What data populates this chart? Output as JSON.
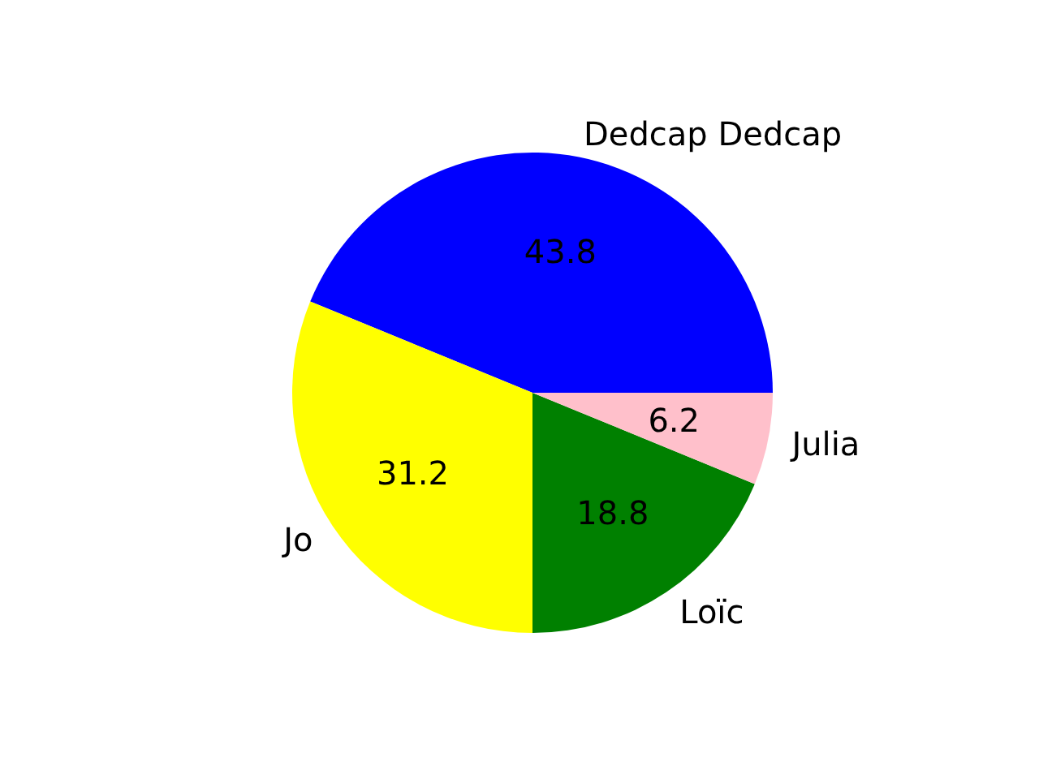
{
  "chart_data": {
    "type": "pie",
    "categories": [
      "Dedcap Dedcap",
      "Jo",
      "Loïc",
      "Julia"
    ],
    "values": [
      43.8,
      31.2,
      18.8,
      6.2
    ],
    "colors": [
      "#0000ff",
      "#ffff00",
      "#008000",
      "#ffc0cb"
    ],
    "data_labels": true
  }
}
